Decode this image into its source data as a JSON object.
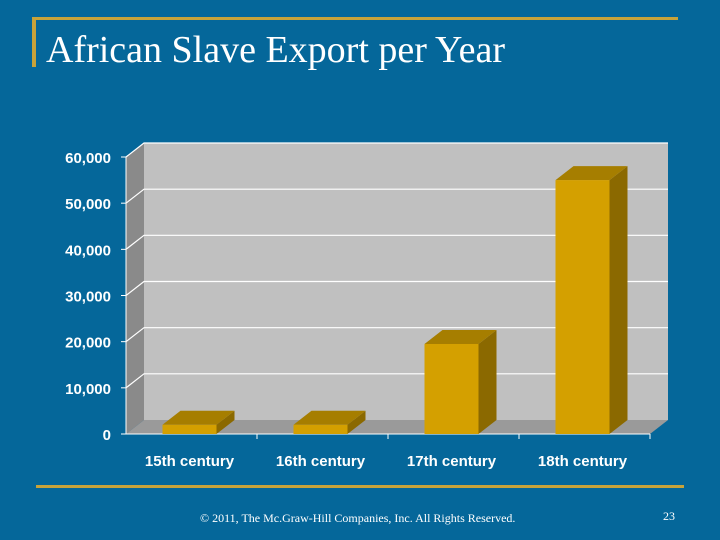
{
  "slide": {
    "title": "African Slave Export per Year",
    "footer": "© 2011, The Mc.Graw-Hill Companies, Inc. All Rights Reserved.",
    "page_number": "23"
  },
  "colors": {
    "background": "#05679a",
    "accent": "#c8a33a",
    "bar_front": "#d4a000",
    "bar_top": "#a67e00",
    "bar_side": "#8b6900",
    "plot_back": "#c0c0c0"
  },
  "chart_data": {
    "type": "bar",
    "title": "",
    "xlabel": "",
    "ylabel": "",
    "categories": [
      "15th century",
      "16th century",
      "17th century",
      "18th century"
    ],
    "values": [
      2000,
      2000,
      19500,
      55000
    ],
    "ylim": [
      0,
      60000
    ],
    "yticks": [
      0,
      10000,
      20000,
      30000,
      40000,
      50000,
      60000
    ],
    "ytick_labels": [
      "0",
      "10,000",
      "20,000",
      "30,000",
      "40,000",
      "50,000",
      "60,000"
    ],
    "grid": true,
    "legend": "none",
    "style": "3d"
  }
}
